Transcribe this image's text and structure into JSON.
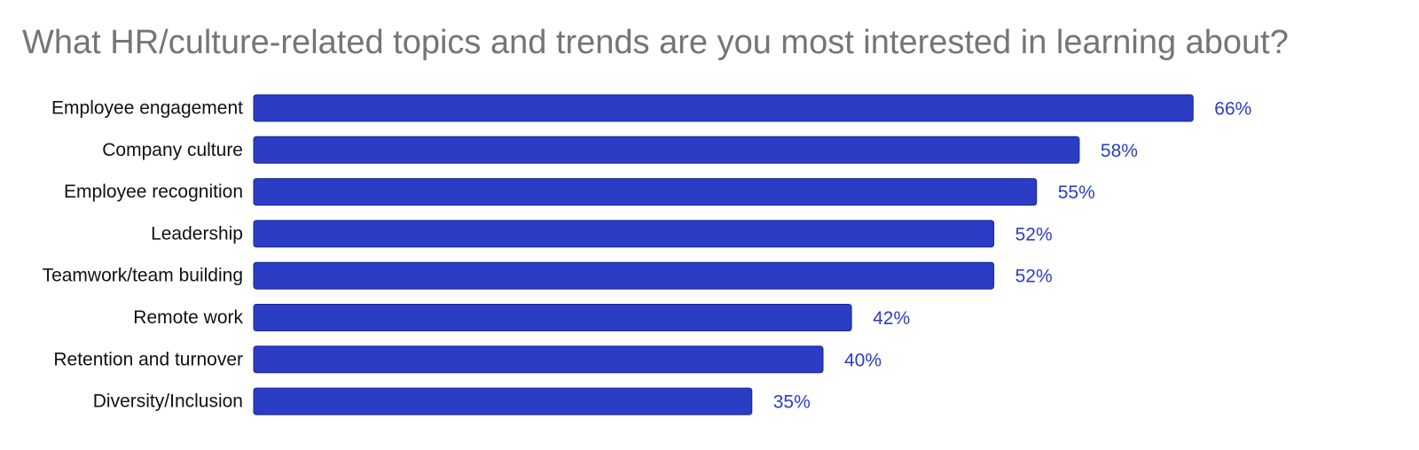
{
  "chart_data": {
    "type": "bar",
    "orientation": "horizontal",
    "title": "What HR/culture-related topics and trends are you most interested in learning about?",
    "categories": [
      "Employee engagement",
      "Company culture",
      "Employee recognition",
      "Leadership",
      "Teamwork/team building",
      "Remote work",
      "Retention and turnover",
      "Diversity/Inclusion"
    ],
    "values": [
      66,
      58,
      55,
      52,
      52,
      42,
      40,
      35
    ],
    "value_labels": [
      "66%",
      "58%",
      "55%",
      "52%",
      "52%",
      "42%",
      "40%",
      "35%"
    ],
    "unit": "%",
    "xlabel": "",
    "ylabel": "",
    "grid": false,
    "legend": "none",
    "colors": {
      "bar_fill": "#2a3dc4",
      "bar_stroke": "#1a2790",
      "value_label": "#2a3dc4",
      "category_label": "#111111",
      "title": "#757575"
    }
  }
}
